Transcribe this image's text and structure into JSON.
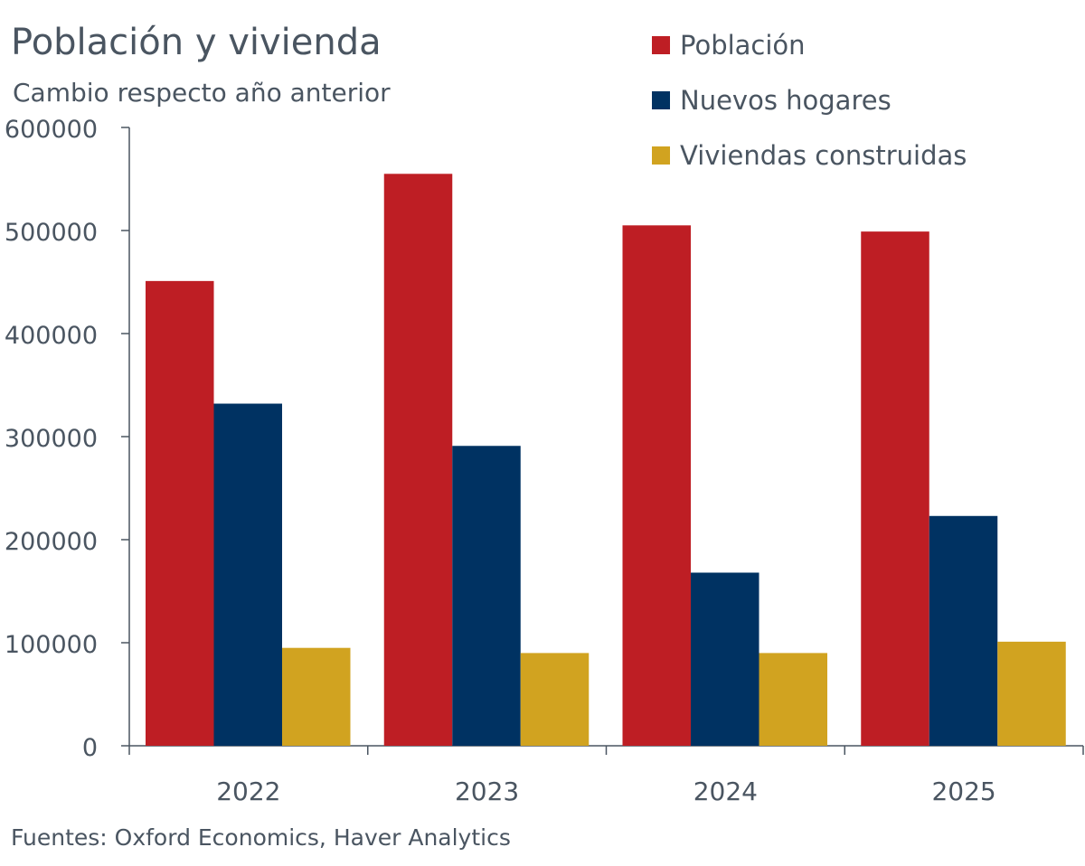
{
  "chart_data": {
    "type": "bar",
    "title": "Población y vivienda",
    "subtitle": "Cambio respecto año anterior",
    "categories": [
      "2022",
      "2023",
      "2024",
      "2025"
    ],
    "series": [
      {
        "name": "Población",
        "color": "#be1e24",
        "values": [
          451000,
          555000,
          505000,
          499000
        ]
      },
      {
        "name": "Nuevos hogares",
        "color": "#003262",
        "values": [
          332000,
          291000,
          168000,
          223000
        ]
      },
      {
        "name": "Viviendas construidas",
        "color": "#d1a320",
        "values": [
          95000,
          90000,
          90000,
          101000
        ]
      }
    ],
    "yticks": [
      "0",
      "100000",
      "200000",
      "300000",
      "400000",
      "500000",
      "600000"
    ],
    "ylim": [
      0,
      600000
    ],
    "xlabel": "",
    "ylabel": "",
    "grid": false,
    "legend": "top-right",
    "source": "Fuentes: Oxford Economics, Haver Analytics"
  }
}
